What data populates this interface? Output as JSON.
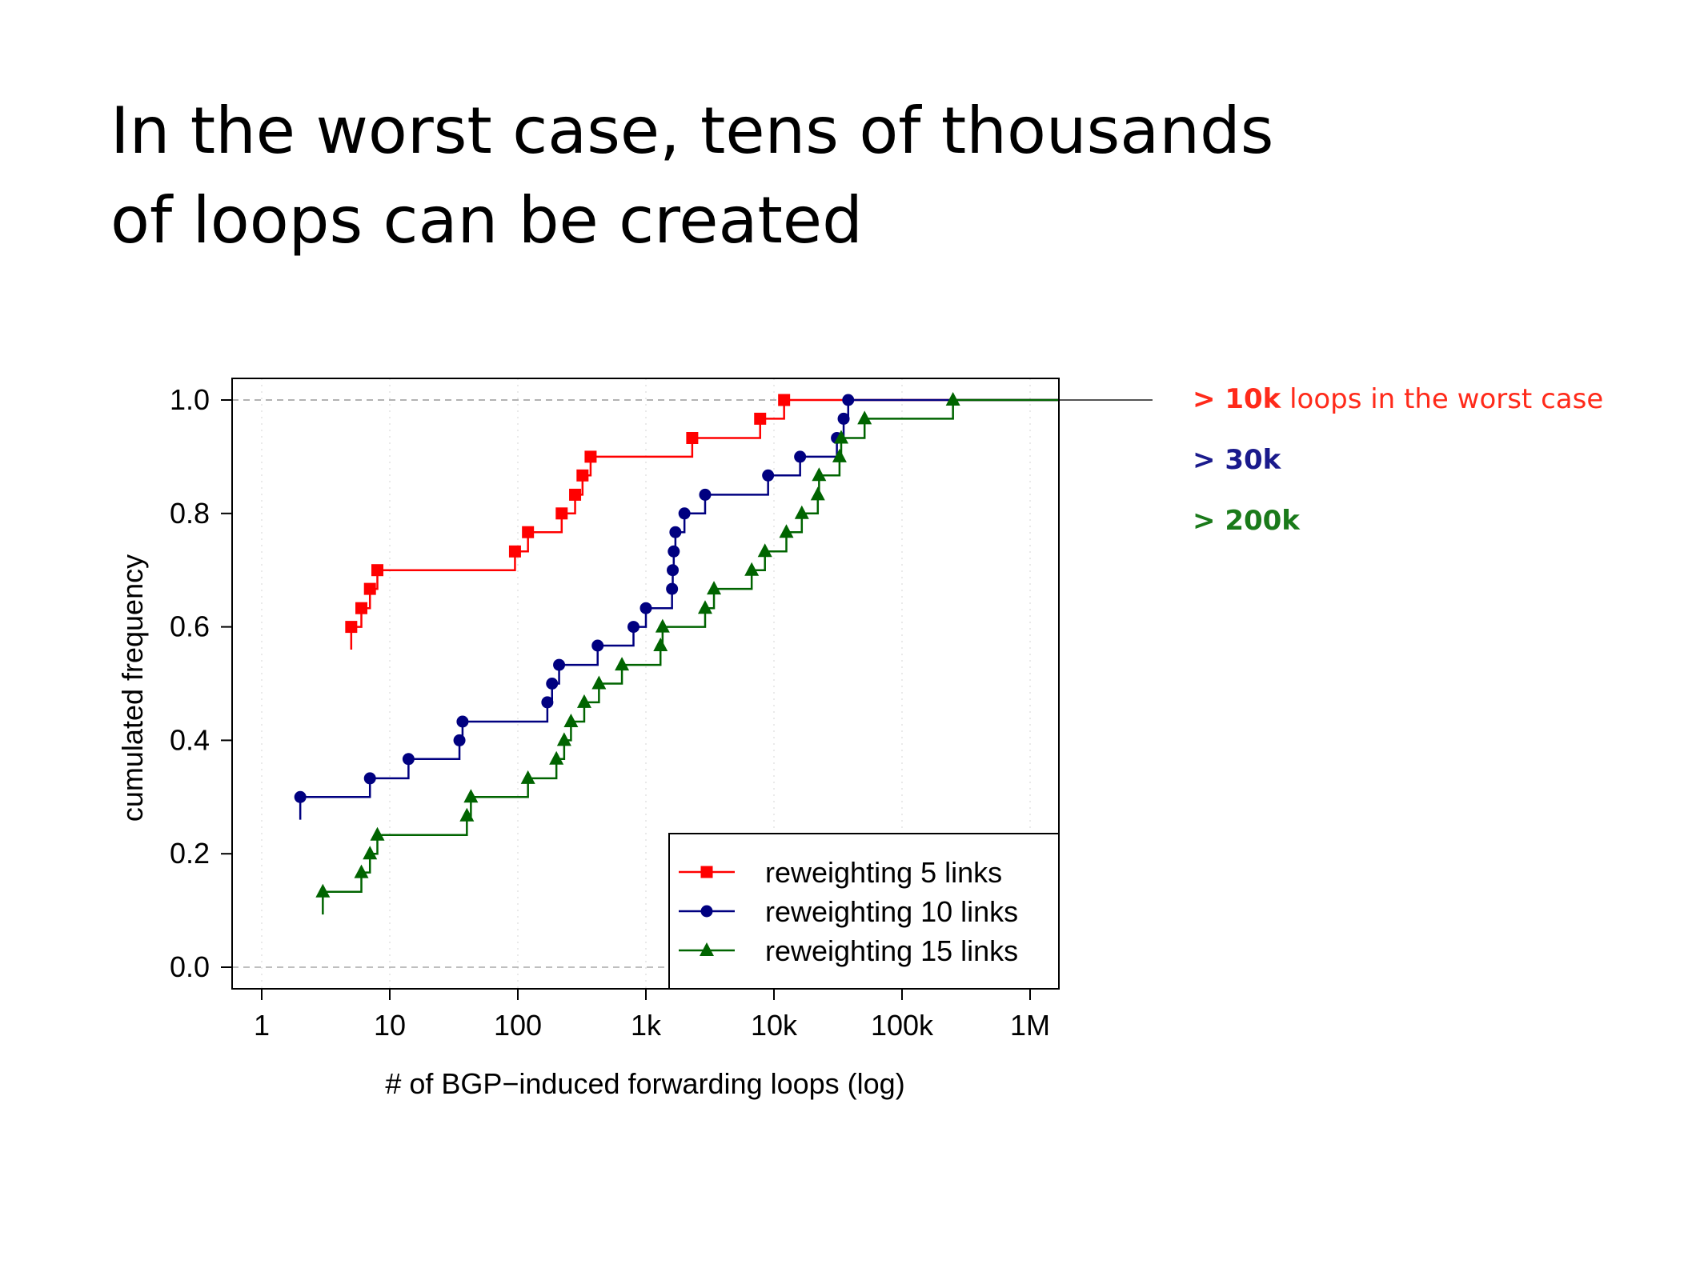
{
  "slide": {
    "title_line1": "In the worst case, tens of thousands",
    "title_line2": "of loops can be created"
  },
  "annotations": [
    {
      "bold": "> 10k",
      "rest": " loops in the worst case",
      "color": "#ff2a1a"
    },
    {
      "bold": "> 30k",
      "rest": "",
      "color": "#1a1a8c"
    },
    {
      "bold": "> 200k",
      "rest": "",
      "color": "#1a7a1a"
    }
  ],
  "chart_data": {
    "type": "line",
    "step": true,
    "xscale": "log",
    "xlabel": "# of BGP−induced forwarding loops (log)",
    "ylabel": "cumulated frequency",
    "xlim": [
      0.8,
      1700000
    ],
    "ylim": [
      0,
      1
    ],
    "x_ticks": [
      1,
      10,
      100,
      1000,
      10000,
      100000,
      1000000
    ],
    "x_tick_labels": [
      "1",
      "10",
      "100",
      "1k",
      "10k",
      "100k",
      "1M"
    ],
    "y_ticks": [
      0,
      0.2,
      0.4,
      0.6,
      0.8,
      1.0
    ],
    "y_tick_labels": [
      "0.0",
      "0.2",
      "0.4",
      "0.6",
      "0.8",
      "1.0"
    ],
    "legend_position": "bottom-right",
    "series": [
      {
        "name": "reweighting 5 links",
        "color": "#ff0000",
        "marker": "square",
        "x": [
          5,
          6,
          7,
          8,
          95,
          120,
          220,
          280,
          320,
          370,
          2300,
          7800,
          12000
        ],
        "y": [
          0.6,
          0.633,
          0.667,
          0.7,
          0.733,
          0.767,
          0.8,
          0.833,
          0.867,
          0.9,
          0.933,
          0.967,
          1.0
        ]
      },
      {
        "name": "reweighting 10 links",
        "color": "#000080",
        "marker": "circle",
        "x": [
          2,
          7,
          14,
          35,
          37,
          170,
          185,
          210,
          420,
          800,
          1000,
          1600,
          1620,
          1650,
          1700,
          2000,
          2900,
          9000,
          16000,
          31000,
          35000,
          38000
        ],
        "y": [
          0.3,
          0.333,
          0.367,
          0.4,
          0.433,
          0.467,
          0.5,
          0.533,
          0.567,
          0.6,
          0.633,
          0.667,
          0.7,
          0.733,
          0.767,
          0.8,
          0.833,
          0.867,
          0.9,
          0.933,
          0.967,
          1.0
        ]
      },
      {
        "name": "reweighting 15 links",
        "color": "#006400",
        "marker": "triangle",
        "x": [
          3,
          6,
          7,
          8,
          40,
          43,
          120,
          200,
          230,
          260,
          330,
          430,
          650,
          1300,
          1350,
          2900,
          3400,
          6700,
          8500,
          12500,
          16500,
          22000,
          22500,
          32500,
          33500,
          51000,
          250000
        ],
        "y": [
          0.133,
          0.167,
          0.2,
          0.233,
          0.267,
          0.3,
          0.333,
          0.367,
          0.4,
          0.433,
          0.467,
          0.5,
          0.533,
          0.567,
          0.6,
          0.633,
          0.667,
          0.7,
          0.733,
          0.767,
          0.8,
          0.833,
          0.867,
          0.9,
          0.933,
          0.967,
          1.0
        ]
      }
    ]
  }
}
